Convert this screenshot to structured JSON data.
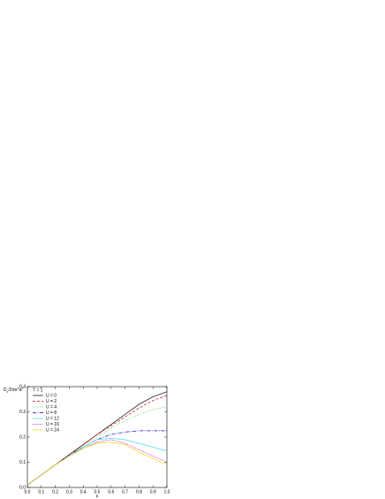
{
  "chart_data": {
    "type": "line",
    "xlabel": "n",
    "ylabel": [
      {
        "text": "D"
      },
      {
        "text": "x",
        "shift": "sub"
      },
      {
        "text": "/2πe"
      },
      {
        "text": "2",
        "shift": "super"
      },
      {
        "text": "a"
      },
      {
        "text": "2",
        "shift": "super"
      }
    ],
    "legend_title": "T = 1",
    "legend": "upper left",
    "x": [
      0,
      0.1,
      0.2,
      0.3,
      0.4,
      0.5,
      0.6,
      0.7,
      0.8,
      0.9,
      1
    ],
    "xlim": [
      0,
      1
    ],
    "xticks": [
      {
        "value": 0,
        "label": "0.0"
      },
      0.1,
      0.2,
      0.3,
      0.4,
      0.5,
      0.6,
      0.7,
      0.8,
      0.9,
      {
        "value": 1,
        "label": "1.0"
      }
    ],
    "ylim": [
      0,
      0.4
    ],
    "yticks": [
      {
        "value": 0,
        "label": "0.0"
      },
      0.1,
      0.2,
      0.3,
      0.4
    ],
    "series": [
      {
        "name": "U = 0",
        "color": "#000000",
        "dash": "",
        "values": [
          0.01,
          0.05,
          0.09,
          0.13,
          0.17,
          0.21,
          0.25,
          0.29,
          0.33,
          0.36,
          0.38
        ]
      },
      {
        "name": "U = 2",
        "color": "#d00000",
        "dash": "3,2",
        "values": [
          0.01,
          0.05,
          0.09,
          0.13,
          0.17,
          0.21,
          0.245,
          0.28,
          0.315,
          0.345,
          0.365
        ]
      },
      {
        "name": "U = 4",
        "color": "#44cc44",
        "dash": "1,1.5",
        "values": [
          0.01,
          0.05,
          0.09,
          0.13,
          0.165,
          0.2,
          0.235,
          0.265,
          0.29,
          0.31,
          0.32
        ]
      },
      {
        "name": "U = 8",
        "color": "#0000cc",
        "dash": "4,1.5,1,1.5",
        "values": [
          0.01,
          0.05,
          0.09,
          0.13,
          0.16,
          0.19,
          0.21,
          0.22,
          0.225,
          0.225,
          0.225
        ]
      },
      {
        "name": "U = 12",
        "color": "#44dddd",
        "dash": "",
        "values": [
          0.01,
          0.05,
          0.09,
          0.125,
          0.16,
          0.19,
          0.195,
          0.19,
          0.175,
          0.16,
          0.145
        ]
      },
      {
        "name": "U = 16",
        "color": "#cc00cc",
        "dash": "1,1",
        "values": [
          0.01,
          0.05,
          0.09,
          0.125,
          0.155,
          0.18,
          0.19,
          0.175,
          0.15,
          0.125,
          0.1
        ]
      },
      {
        "name": "U = 24",
        "color": "#e8d800",
        "dash": "",
        "values": [
          0.01,
          0.05,
          0.09,
          0.125,
          0.155,
          0.175,
          0.18,
          0.17,
          0.14,
          0.115,
          0.09
        ]
      }
    ]
  }
}
